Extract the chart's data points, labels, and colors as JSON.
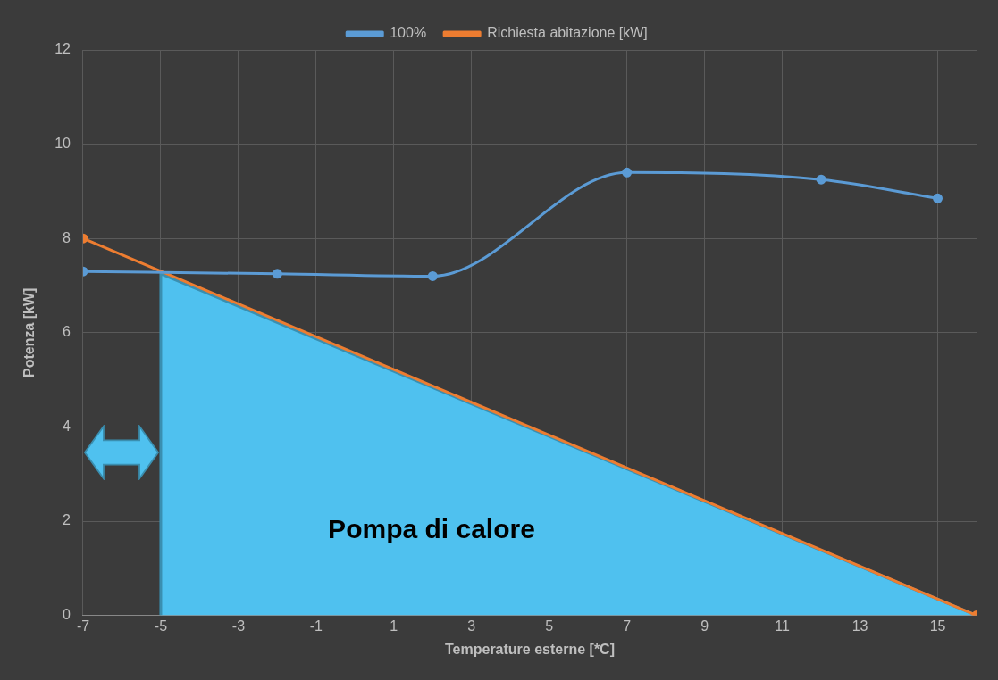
{
  "chart_data": {
    "type": "line",
    "xlabel": "Temperature esterne [*C]",
    "ylabel": "Potenza [kW]",
    "xlim": [
      -7,
      16
    ],
    "xticks": [
      -7,
      -5,
      -3,
      -1,
      1,
      3,
      5,
      7,
      9,
      11,
      13,
      15
    ],
    "ylim": [
      0,
      12
    ],
    "yticks": [
      0,
      2,
      4,
      6,
      8,
      10,
      12
    ],
    "series": [
      {
        "name": "100%",
        "color": "#5b9bd5",
        "x": [
          -7,
          -2,
          2,
          7,
          12,
          15
        ],
        "values": [
          7.3,
          7.25,
          7.2,
          9.4,
          9.25,
          8.85
        ]
      },
      {
        "name": "Richiesta abitazione [kW]",
        "color": "#ed7d31",
        "x": [
          -7,
          16
        ],
        "values": [
          8,
          0
        ]
      },
      {
        "type": "area",
        "color": "#4fc1ef",
        "x": [
          -5,
          -5,
          16
        ],
        "values": [
          0,
          7.25,
          0
        ],
        "marker": "none"
      }
    ],
    "annotations": [
      "Pompa di calore"
    ],
    "grid": true,
    "legend": "top",
    "marker": "circle",
    "line_style": "solid"
  }
}
